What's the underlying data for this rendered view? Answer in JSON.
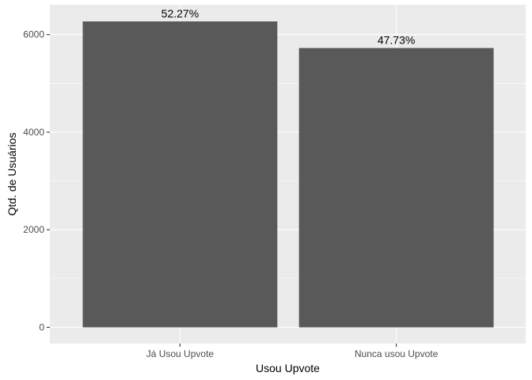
{
  "chart_data": {
    "type": "bar",
    "title": "",
    "xlabel": "Usou Upvote",
    "ylabel": "Qtd. de Usuários",
    "categories": [
      "Já Usou Upvote",
      "Nunca usou Upvote"
    ],
    "values": [
      6270,
      5725
    ],
    "data_labels": [
      "52.27%",
      "47.73%"
    ],
    "ylim": [
      0,
      6600
    ],
    "yticks": [
      0,
      2000,
      4000,
      6000
    ],
    "ytick_labels": [
      "0",
      "2000",
      "4000",
      "6000"
    ],
    "grid": true,
    "legend": "none",
    "colors": {
      "bar": "#595959",
      "panel": "#ebebeb",
      "grid_major": "#ffffff",
      "tick": "#333333"
    }
  }
}
